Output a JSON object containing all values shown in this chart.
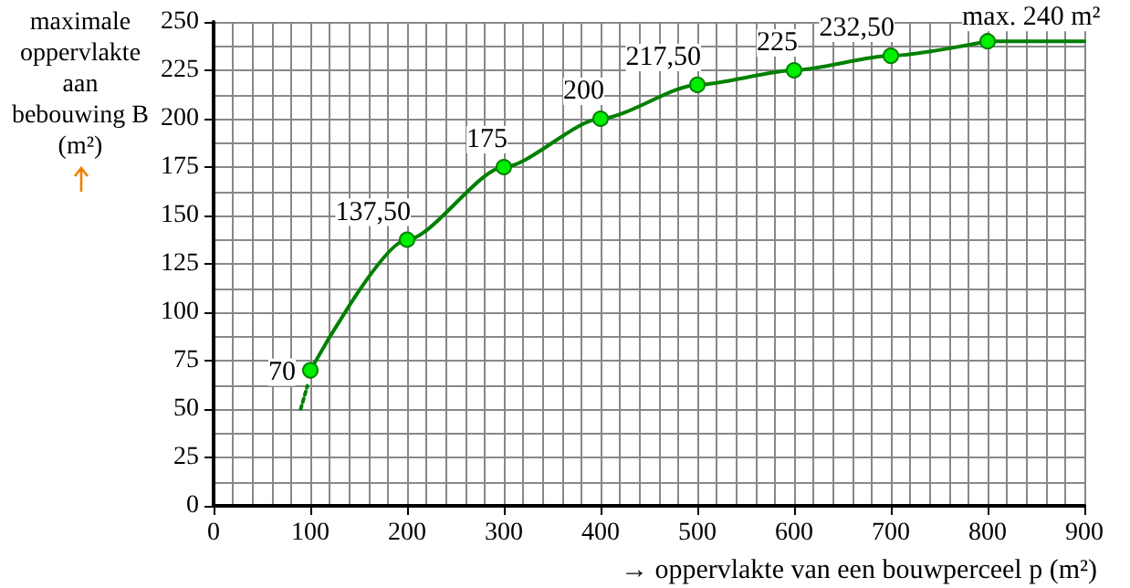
{
  "chart_data": {
    "type": "line",
    "ylabel": "maximale oppervlakte aan bebouwing B (m²)",
    "xlabel": "→ oppervlakte van een bouwperceel p (m²)",
    "xlim": [
      0,
      900
    ],
    "xticks": [
      0,
      100,
      200,
      300,
      400,
      500,
      600,
      700,
      800,
      900
    ],
    "ylim": [
      0,
      250
    ],
    "yticks": [
      0,
      25,
      50,
      75,
      100,
      125,
      150,
      175,
      200,
      225,
      250
    ],
    "grid": true,
    "series": [
      {
        "x": [
          100,
          200,
          300,
          400,
          500,
          600,
          700,
          800
        ],
        "values": [
          70,
          137.5,
          175,
          200,
          217.5,
          225,
          232.5,
          240
        ],
        "color": "#008000",
        "marker": "circle",
        "line_style": "solid",
        "value_labels": [
          "70",
          "137,50",
          "175",
          "200",
          "217,50",
          "225",
          "232,50",
          "max. 240 m²"
        ]
      },
      {
        "x": [
          800,
          900
        ],
        "values": [
          240,
          240
        ],
        "color": "#008000",
        "marker": "none",
        "line_style": "solid"
      },
      {
        "x": [
          90,
          97
        ],
        "values": [
          50,
          62
        ],
        "color": "#008000",
        "marker": "none",
        "line_style": "dotted"
      }
    ]
  }
}
